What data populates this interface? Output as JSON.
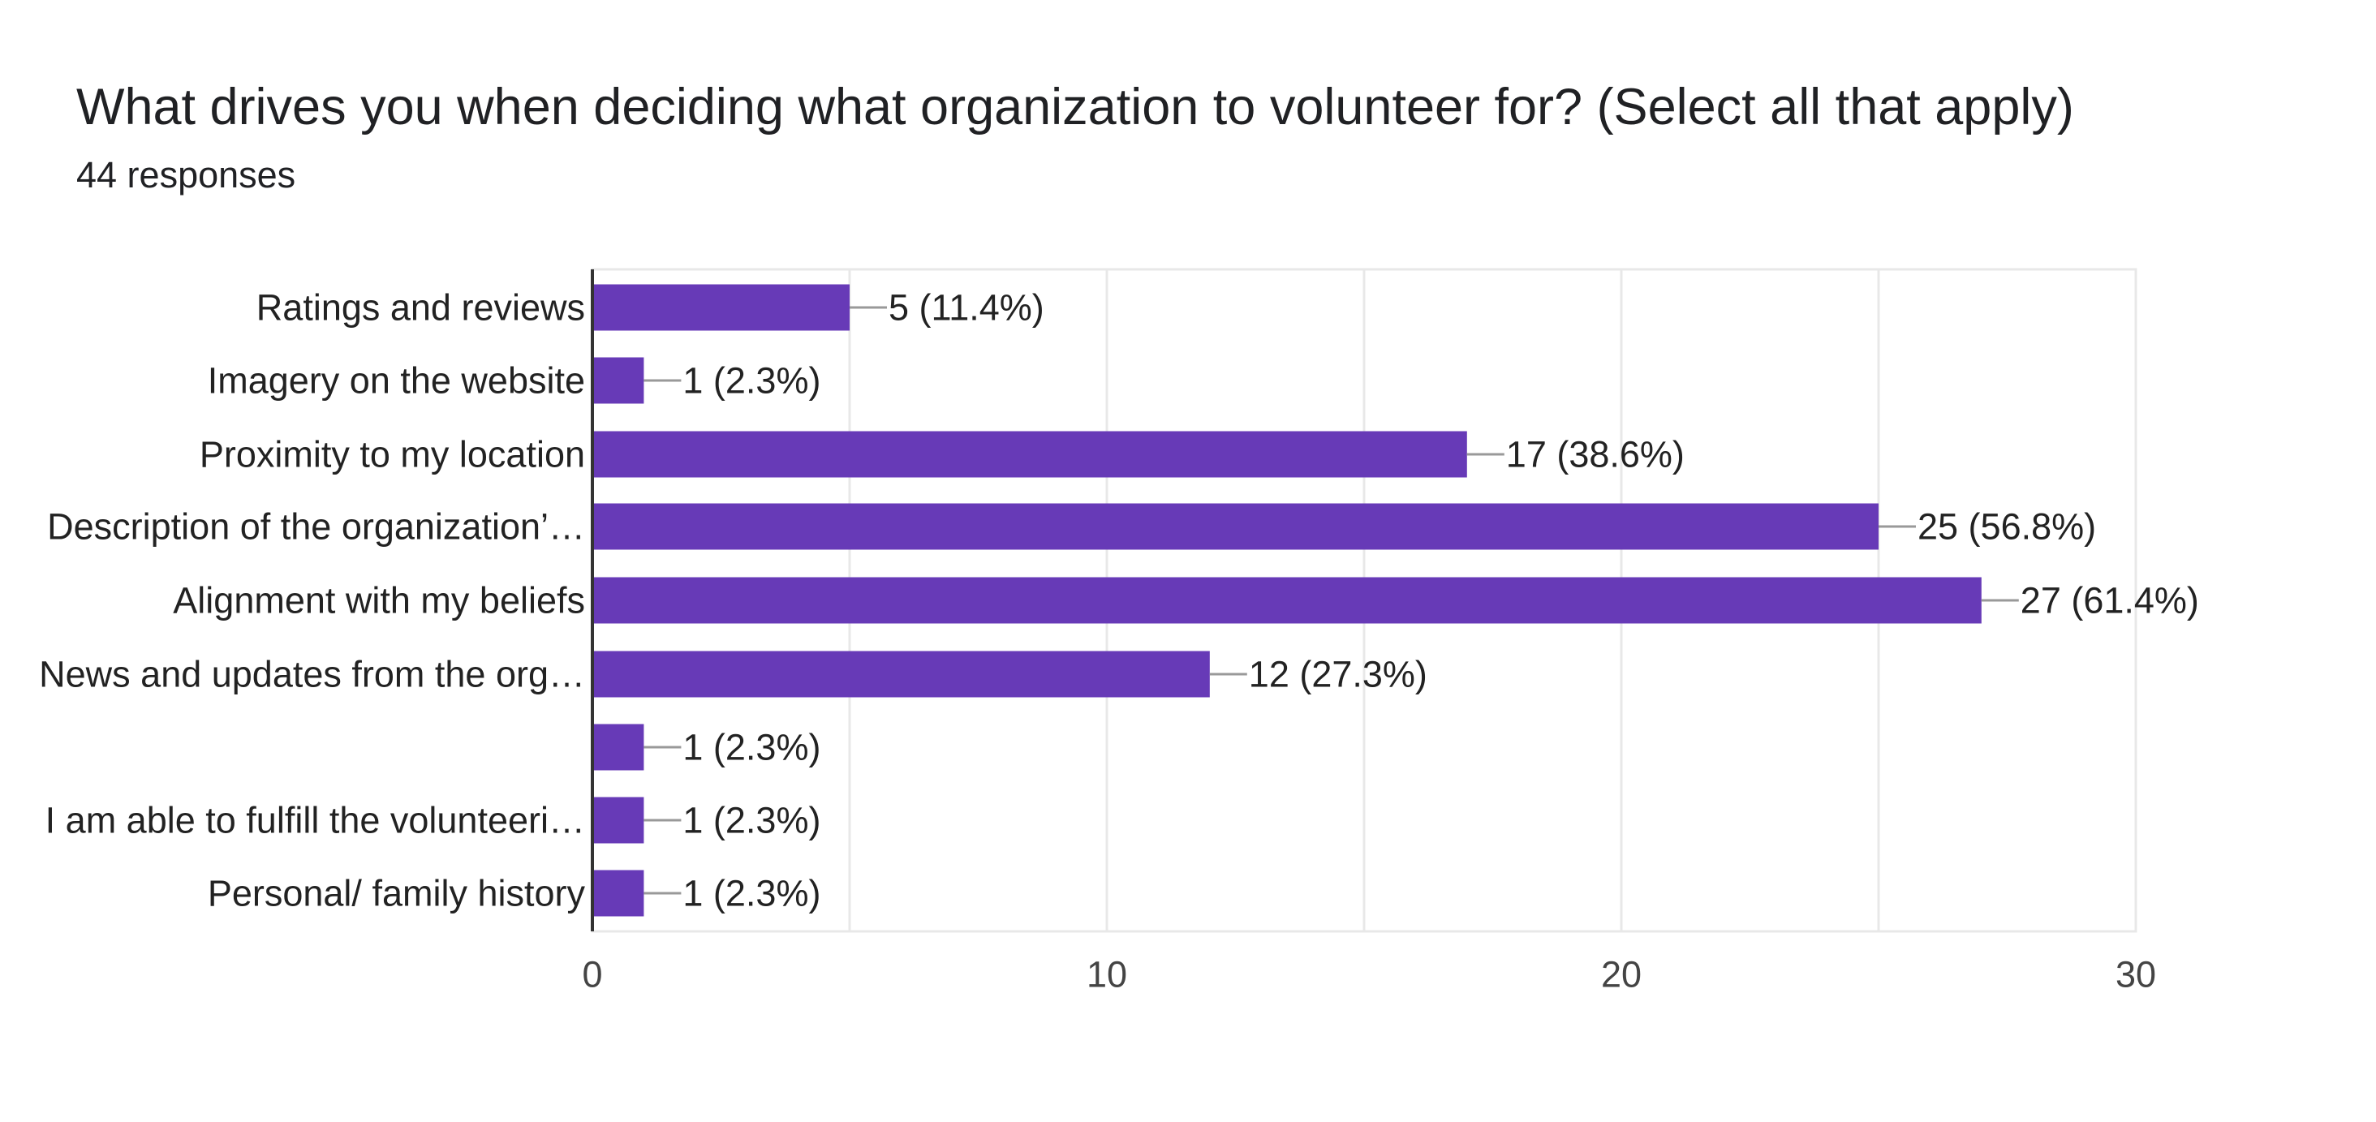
{
  "header": {
    "title": "What drives you when deciding what organization to volunteer for? (Select all that apply)",
    "responses": "44 responses"
  },
  "colors": {
    "bar": "#673ab7",
    "grid": "#e8e8e8",
    "axis": "#333333",
    "leader": "#999999"
  },
  "chart_data": {
    "type": "bar",
    "orientation": "horizontal",
    "title": "What drives you when deciding what organization to volunteer for? (Select all that apply)",
    "subtitle": "44 responses",
    "categories": [
      "Ratings and reviews",
      "Imagery on the website",
      "Proximity to my location",
      "Description of the organization’…",
      "Alignment with my beliefs",
      "News and updates from the org…",
      "",
      "I am able to fulfill the volunteeri…",
      "Personal/ family history"
    ],
    "values": [
      5,
      1,
      17,
      25,
      27,
      12,
      1,
      1,
      1
    ],
    "value_labels": [
      "5 (11.4%)",
      "1 (2.3%)",
      "17 (38.6%)",
      "25 (56.8%)",
      "27 (61.4%)",
      "12 (27.3%)",
      "1 (2.3%)",
      "1 (2.3%)",
      "1 (2.3%)"
    ],
    "xlim": [
      0,
      30
    ],
    "xticks": [
      0,
      10,
      20,
      30
    ],
    "xtick_labels": [
      "0",
      "10",
      "20",
      "30"
    ],
    "grid": true,
    "xlabel": "",
    "ylabel": ""
  }
}
